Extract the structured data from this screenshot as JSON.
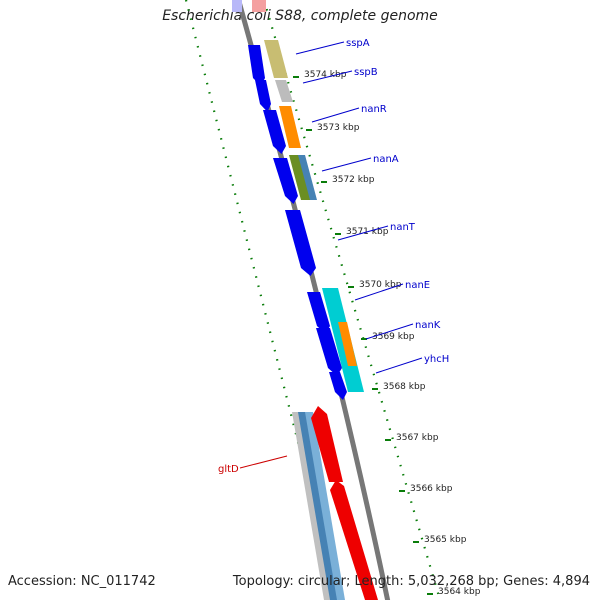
{
  "title": "Escherichia coli S88, complete genome",
  "footer": {
    "accession": "Accession: NC_011742",
    "stats": "Topology: circular; Length: 5,032,268 bp; Genes: 4,894"
  },
  "colors": {
    "backbone": "#777777",
    "tick_dots": "#0a7d0a",
    "cds": "#0000ee",
    "rna_red": "#ee0000",
    "label_blue": "#0000cc",
    "label_red": "#cc0000"
  },
  "ticks": [
    {
      "label": "3574 kbp"
    },
    {
      "label": "3573 kbp"
    },
    {
      "label": "3572 kbp"
    },
    {
      "label": "3571 kbp"
    },
    {
      "label": "3570 kbp"
    },
    {
      "label": "3569 kbp"
    },
    {
      "label": "3568 kbp"
    },
    {
      "label": "3567 kbp"
    },
    {
      "label": "3566 kbp"
    },
    {
      "label": "3565 kbp"
    },
    {
      "label": "3564 kbp"
    }
  ],
  "genes": [
    {
      "label": "sspA",
      "color_role": "label_blue"
    },
    {
      "label": "sspB",
      "color_role": "label_blue"
    },
    {
      "label": "nanR",
      "color_role": "label_blue"
    },
    {
      "label": "nanA",
      "color_role": "label_blue"
    },
    {
      "label": "nanT",
      "color_role": "label_blue"
    },
    {
      "label": "nanE",
      "color_role": "label_blue"
    },
    {
      "label": "nanK",
      "color_role": "label_blue"
    },
    {
      "label": "yhcH",
      "color_role": "label_blue"
    },
    {
      "label": "gltD",
      "color_role": "label_red"
    }
  ]
}
